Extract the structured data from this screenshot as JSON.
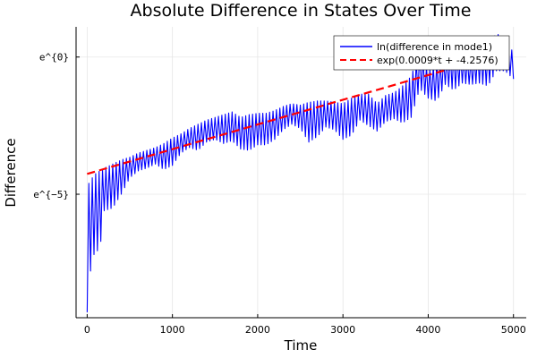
{
  "chart_data": {
    "type": "line",
    "title": "Absolute Difference in States Over Time",
    "xlabel": "Time",
    "ylabel": "Difference",
    "xlim": [
      -130,
      5150
    ],
    "ylim": [
      -9.5,
      1.1
    ],
    "y_scale": "natural-log",
    "grid": true,
    "legend_position": "top-right",
    "x_ticks": [
      0,
      1000,
      2000,
      3000,
      4000,
      5000
    ],
    "x_tick_labels": [
      "0",
      "1000",
      "2000",
      "3000",
      "4000",
      "5000"
    ],
    "y_ticks": [
      -5,
      0
    ],
    "y_tick_labels": [
      "e^{−5}",
      "e^{0}"
    ],
    "series": [
      {
        "name": "ln(difference in mode1)",
        "style": "solid",
        "color": "#0000ff",
        "oscillation_period": 40,
        "x": [
          0,
          20,
          40,
          60,
          80,
          100,
          150,
          200,
          300,
          400,
          500,
          600,
          700,
          800,
          900,
          1000,
          1100,
          1200,
          1300,
          1400,
          1500,
          1600,
          1700,
          1800,
          1900,
          2000,
          2100,
          2200,
          2300,
          2400,
          2500,
          2600,
          2700,
          2800,
          2900,
          3000,
          3100,
          3200,
          3300,
          3400,
          3500,
          3600,
          3700,
          3800,
          3900,
          4000,
          4100,
          4200,
          4300,
          4400,
          4500,
          4600,
          4700,
          4800,
          4900,
          5000
        ],
        "upper": [
          -5.0,
          -4.6,
          -4.5,
          -4.4,
          -4.3,
          -4.25,
          -4.15,
          -4.05,
          -3.9,
          -3.75,
          -3.65,
          -3.5,
          -3.4,
          -3.3,
          -3.15,
          -2.95,
          -2.8,
          -2.6,
          -2.45,
          -2.3,
          -2.2,
          -2.1,
          -2.0,
          -2.2,
          -2.1,
          -2.05,
          -2.05,
          -1.95,
          -1.8,
          -1.7,
          -1.75,
          -1.65,
          -1.6,
          -1.6,
          -1.65,
          -1.7,
          -1.5,
          -1.35,
          -1.35,
          -1.7,
          -1.4,
          -1.3,
          -1.05,
          -0.7,
          0.25,
          -0.5,
          -0.2,
          0.0,
          0.25,
          0.1,
          -0.1,
          0.35,
          0.25,
          0.9,
          0.5,
          0.2
        ],
        "lower": [
          -9.3,
          -8.3,
          -7.8,
          -7.4,
          -7.2,
          -7.1,
          -7.0,
          -5.6,
          -5.5,
          -5.0,
          -4.4,
          -4.15,
          -4.05,
          -3.9,
          -4.1,
          -3.95,
          -3.5,
          -3.3,
          -3.4,
          -3.1,
          -3.0,
          -3.15,
          -3.05,
          -3.35,
          -3.4,
          -3.2,
          -3.2,
          -3.0,
          -2.65,
          -2.45,
          -2.6,
          -3.1,
          -2.9,
          -2.55,
          -2.65,
          -3.0,
          -2.85,
          -2.3,
          -2.5,
          -2.7,
          -2.35,
          -2.25,
          -2.4,
          -2.2,
          -1.15,
          -1.5,
          -1.6,
          -1.0,
          -1.2,
          -0.95,
          -1.0,
          -0.95,
          -1.05,
          -0.5,
          -0.5,
          -0.8
        ]
      },
      {
        "name": "exp(0.0009*t + -4.2576)",
        "style": "dashed",
        "color": "#ff0000",
        "x": [
          0,
          4250
        ],
        "y": [
          -4.2576,
          -0.4326
        ]
      }
    ]
  }
}
